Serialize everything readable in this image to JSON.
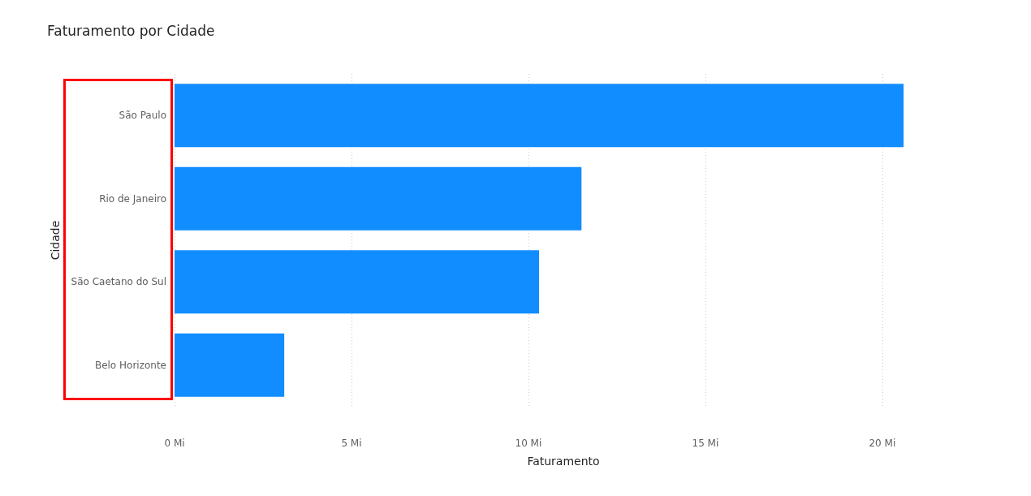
{
  "chart_data": {
    "type": "bar",
    "orientation": "horizontal",
    "title": "Faturamento por Cidade",
    "xlabel": "Faturamento",
    "ylabel": "Cidade",
    "categories": [
      "São Paulo",
      "Rio de Janeiro",
      "São Caetano do Sul",
      "Belo Horizonte"
    ],
    "values": [
      20.6,
      11.5,
      10.3,
      3.1
    ],
    "color": "#118dff",
    "xlim": [
      0,
      20.6
    ],
    "xticks": [
      {
        "value": 0,
        "label": "0 Mi"
      },
      {
        "value": 5,
        "label": "5 Mi"
      },
      {
        "value": 10,
        "label": "10 Mi"
      },
      {
        "value": 15,
        "label": "15 Mi"
      },
      {
        "value": 20,
        "label": "20 Mi"
      }
    ],
    "grid": "x"
  }
}
